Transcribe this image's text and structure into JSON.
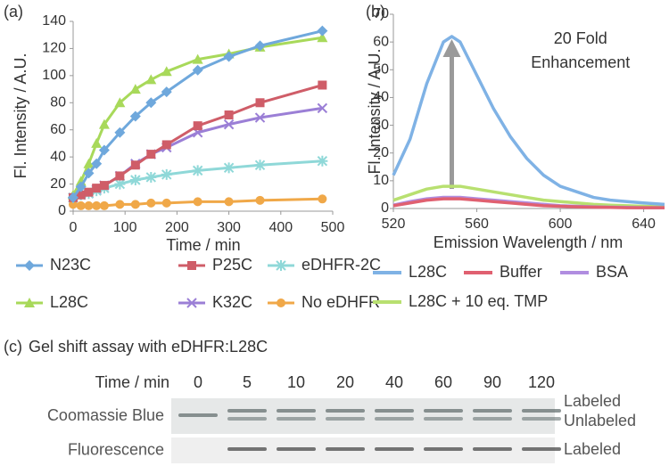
{
  "chart_data": [
    {
      "type": "line",
      "panel_label": "(a)",
      "x_label": "Time / min",
      "y_label": "Fl. Intensity / A.U.",
      "x": [
        0,
        15,
        30,
        45,
        60,
        90,
        120,
        150,
        180,
        240,
        300,
        360,
        480
      ],
      "xlim": [
        0,
        500
      ],
      "xticks": [
        0,
        100,
        200,
        300,
        400,
        500
      ],
      "ylim": [
        0,
        140
      ],
      "yticks": [
        0,
        20,
        40,
        60,
        80,
        100,
        120,
        140
      ],
      "legend_columns": 3,
      "series": [
        {
          "name": "N23C",
          "color": "#6fa8dc",
          "marker": "diamond",
          "values": [
            10,
            18,
            28,
            35,
            45,
            58,
            70,
            80,
            88,
            104,
            114,
            122,
            133
          ]
        },
        {
          "name": "P25C",
          "color": "#cf5d68",
          "marker": "square",
          "values": [
            10,
            12,
            14,
            17,
            19,
            26,
            34,
            42,
            49,
            63,
            71,
            80,
            93
          ]
        },
        {
          "name": "eDHFR-2C",
          "color": "#8fd8d8",
          "marker": "asterisk",
          "values": [
            10,
            12,
            13,
            15,
            17,
            20,
            23,
            25,
            27,
            30,
            32,
            34,
            37
          ]
        },
        {
          "name": "L28C",
          "color": "#a8d95a",
          "marker": "triangle",
          "values": [
            12,
            22,
            35,
            50,
            64,
            80,
            90,
            97,
            103,
            112,
            116,
            121,
            128
          ]
        },
        {
          "name": "K32C",
          "color": "#9b7fd6",
          "marker": "x",
          "values": [
            10,
            12,
            13,
            16,
            19,
            26,
            35,
            42,
            47,
            58,
            64,
            69,
            76
          ]
        },
        {
          "name": "No eDHFR",
          "color": "#f0a848",
          "marker": "circle",
          "values": [
            5,
            4,
            4,
            4,
            4,
            5,
            5,
            6,
            6,
            7,
            7,
            8,
            9
          ]
        }
      ]
    },
    {
      "type": "line",
      "panel_label": "(b)",
      "x_label": "Emission Wavelength / nm",
      "y_label": "Fl. Intensity / A.U.",
      "x": [
        520,
        528,
        536,
        544,
        548,
        552,
        560,
        568,
        576,
        584,
        592,
        600,
        608,
        616,
        624,
        632,
        640,
        650
      ],
      "xlim": [
        520,
        650
      ],
      "xticks": [
        520,
        560,
        600,
        640
      ],
      "ylim": [
        0,
        70
      ],
      "yticks": [
        0,
        10,
        20,
        30,
        40,
        50,
        60,
        70
      ],
      "legend_columns": 3,
      "annotation": [
        "20 Fold",
        "Enhancement"
      ],
      "series": [
        {
          "name": "L28C",
          "color": "#7fb2e5",
          "values": [
            12,
            25,
            45,
            60,
            62,
            60,
            48,
            36,
            26,
            18,
            12,
            8,
            6,
            4,
            3,
            2.5,
            2,
            1.5
          ]
        },
        {
          "name": "Buffer",
          "color": "#e06070",
          "values": [
            1,
            2,
            3,
            3.5,
            3.5,
            3.5,
            3,
            2.5,
            2,
            1.5,
            1,
            0.8,
            0.6,
            0.5,
            0.4,
            0.3,
            0.3,
            0.3
          ]
        },
        {
          "name": "BSA",
          "color": "#b08de0",
          "values": [
            1.2,
            2.5,
            3.5,
            4,
            4,
            4,
            3.5,
            3,
            2.5,
            2,
            1.5,
            1,
            0.8,
            0.6,
            0.5,
            0.4,
            0.3,
            0.3
          ]
        },
        {
          "name": "L28C + 10 eq. TMP",
          "color": "#b8e070",
          "values": [
            3,
            5,
            7,
            8,
            8,
            8,
            7,
            6,
            5,
            4,
            3,
            2.5,
            2,
            1.5,
            1.2,
            1,
            0.8,
            0.6
          ]
        }
      ]
    }
  ],
  "gel": {
    "panel_label": "(c)",
    "title": "Gel shift assay with eDHFR:L28C",
    "time_label": "Time / min",
    "times": [
      0,
      5,
      10,
      20,
      40,
      60,
      90,
      120
    ],
    "rows": [
      {
        "name": "Coomassie Blue",
        "right_labels": [
          "Labeled",
          "Unlabeled"
        ]
      },
      {
        "name": "Fluorescence",
        "right_labels": [
          "Labeled"
        ]
      }
    ]
  }
}
